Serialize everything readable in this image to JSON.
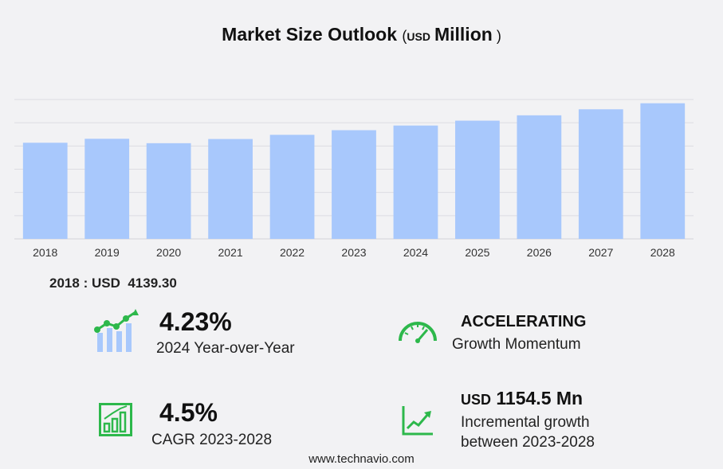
{
  "title": {
    "main": "Market Size Outlook",
    "open_paren": "(",
    "unit_small": "USD",
    "unit_word": "Million",
    "close_paren": ")"
  },
  "chart_data": {
    "type": "bar",
    "categories": [
      "2018",
      "2019",
      "2020",
      "2021",
      "2022",
      "2023",
      "2024",
      "2025",
      "2026",
      "2027",
      "2028"
    ],
    "values": [
      4139.3,
      4310,
      4120,
      4300,
      4480,
      4680,
      4880,
      5090,
      5320,
      5580,
      5840
    ],
    "ylim": [
      0,
      6000
    ],
    "bar_color": "#a8c8fc",
    "gridlines": true
  },
  "base_year": {
    "year": "2018",
    "separator": ":",
    "currency": "USD",
    "value": "4139.30"
  },
  "stats": {
    "yoy": {
      "value": "4.23%",
      "label": "2024 Year-over-Year",
      "icon": "trend-bars-icon"
    },
    "momentum": {
      "value": "ACCELERATING",
      "label": "Growth Momentum",
      "icon": "speedometer-icon"
    },
    "cagr": {
      "value": "4.5%",
      "label": "CAGR 2023-2028",
      "icon": "bar-growth-icon"
    },
    "incremental": {
      "currency": "USD",
      "value": "1154.5 Mn",
      "label_line1": "Incremental growth",
      "label_line2": "between 2023-2028",
      "icon": "line-growth-icon"
    }
  },
  "colors": {
    "accent_green": "#2db84b",
    "bar": "#a8c8fc",
    "grid": "#dcdce2"
  },
  "footer": "www.technavio.com"
}
